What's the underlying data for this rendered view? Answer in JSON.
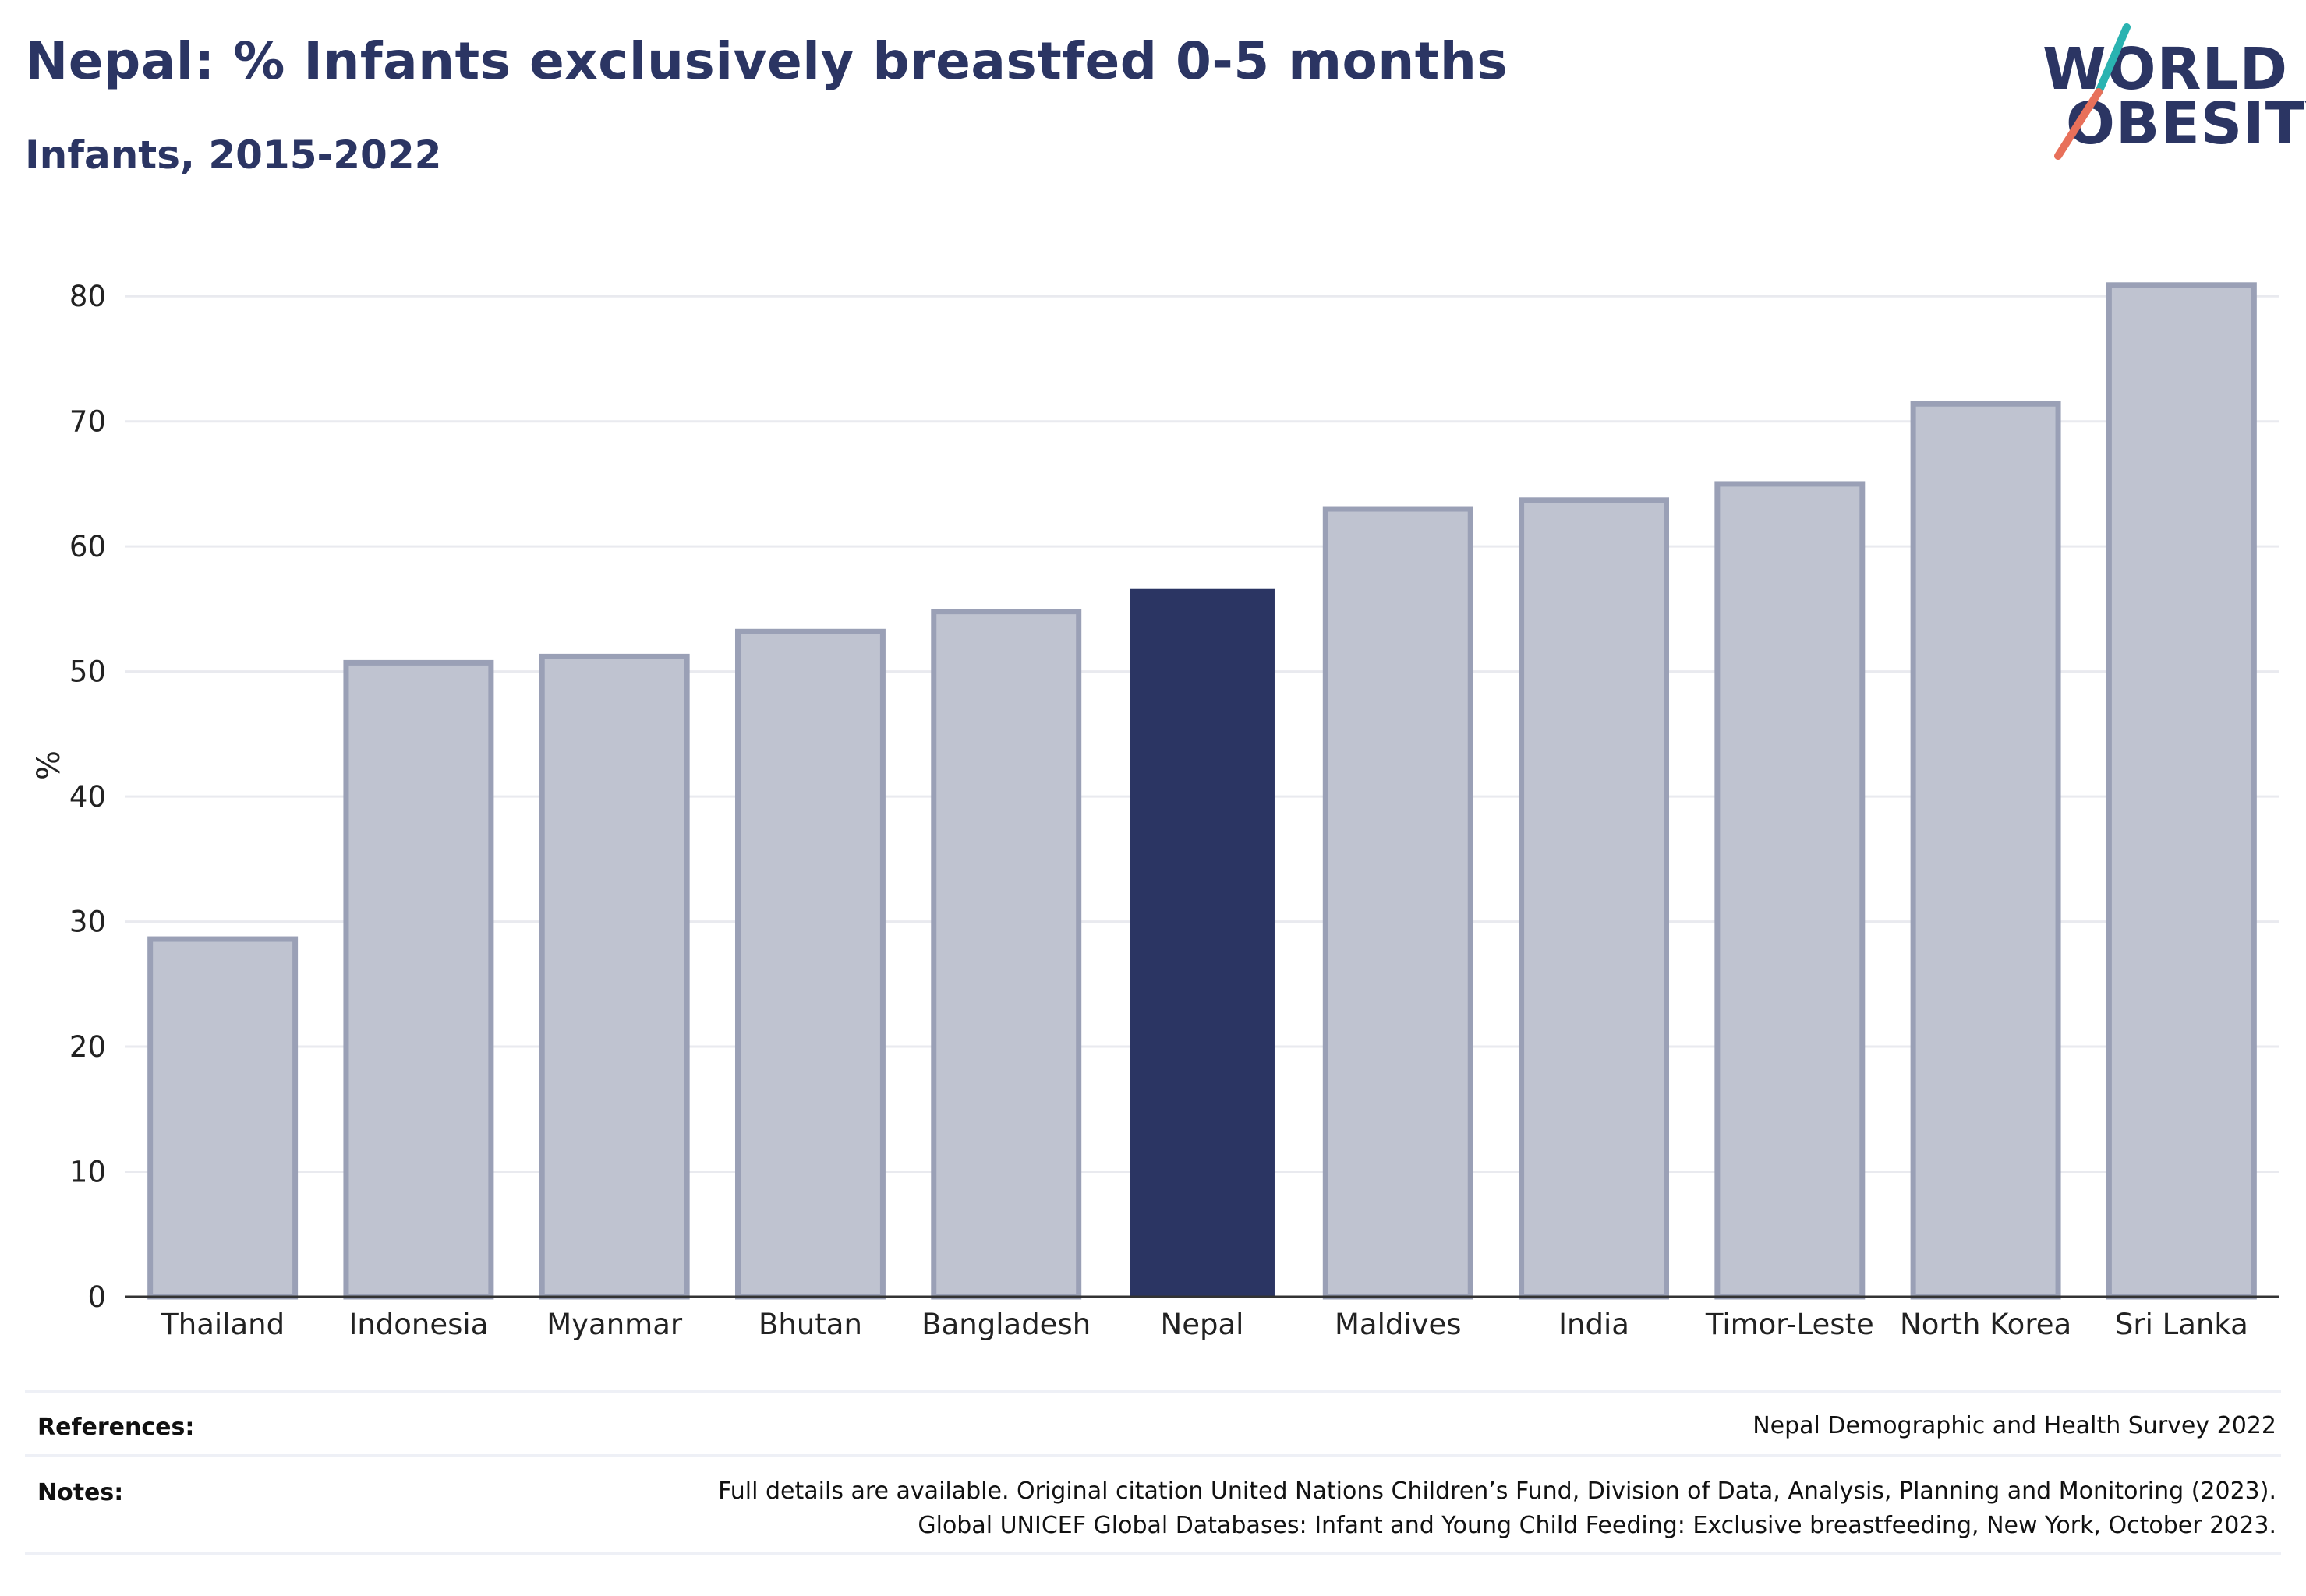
{
  "header": {
    "title": "Nepal: % Infants exclusively breastfed 0-5 months",
    "subtitle": "Infants, 2015-2022"
  },
  "logo": {
    "line1": "WORLD",
    "line2": "OBESITY",
    "accent_colors": [
      "#2ab3b1",
      "#e8705a"
    ]
  },
  "colors": {
    "highlight_bar": "#2b3563",
    "other_bar_fill": "#bfc3d0",
    "other_bar_stroke": "#9aa0b6",
    "grid": "#e9eaef",
    "text": "#2b3563"
  },
  "chart_data": {
    "type": "bar",
    "categories": [
      "Thailand",
      "Indonesia",
      "Myanmar",
      "Bhutan",
      "Bangladesh",
      "Nepal",
      "Maldives",
      "India",
      "Timor-Leste",
      "North Korea",
      "Sri Lanka"
    ],
    "values": [
      28.6,
      50.7,
      51.2,
      53.2,
      54.8,
      56.6,
      63.0,
      63.7,
      65.0,
      71.4,
      80.9
    ],
    "highlight": "Nepal",
    "title": "Nepal: % Infants exclusively breastfed 0-5 months",
    "subtitle": "Infants, 2015-2022",
    "xlabel": "",
    "ylabel": "%",
    "ylim": [
      0,
      85
    ],
    "yticks": [
      0,
      10,
      20,
      30,
      40,
      50,
      60,
      70,
      80
    ],
    "grid": true,
    "legend": "none"
  },
  "footer": {
    "references_label": "References:",
    "references_text": "Nepal Demographic and Health Survey 2022",
    "notes_label": "Notes:",
    "notes_line1": "Full details are available. Original citation United Nations Children’s Fund, Division of Data, Analysis, Planning and Monitoring (2023).",
    "notes_line2": "Global UNICEF Global Databases: Infant and Young Child Feeding: Exclusive breastfeeding, New York, October 2023."
  }
}
